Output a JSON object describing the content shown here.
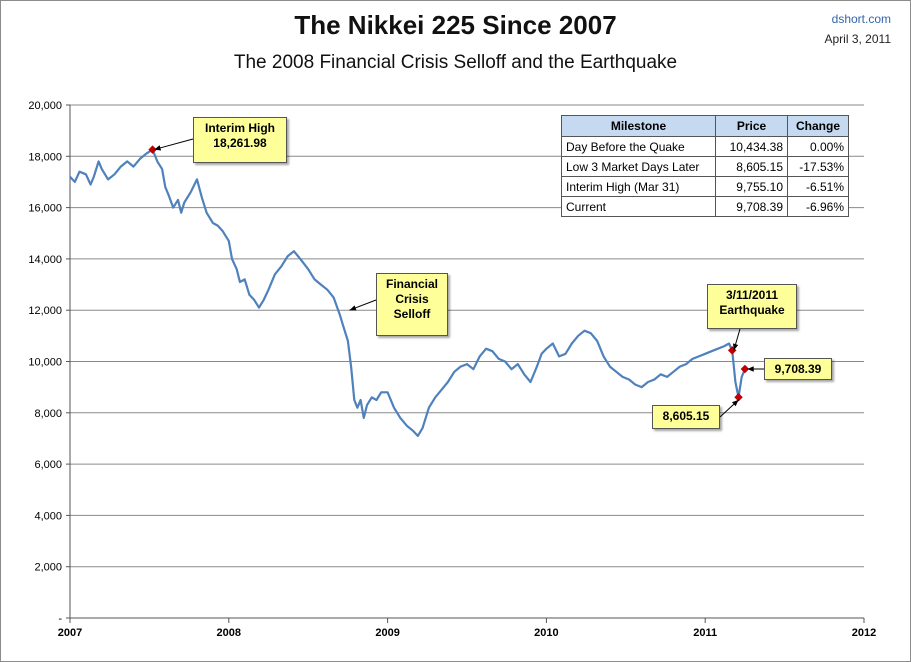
{
  "header": {
    "title": "The Nikkei 225 Since 2007",
    "subtitle": "The 2008 Financial Crisis Selloff and the Earthquake",
    "source": "dshort.com",
    "date": "April 3, 2011"
  },
  "colors": {
    "line": "#4f81bd",
    "marker": "#c00000",
    "annotation_fill": "#ffff99",
    "table_header": "#c5d9f1"
  },
  "annotations": {
    "interim_high": {
      "line1": "Interim High",
      "line2": "18,261.98"
    },
    "financial_crisis": {
      "line1": "Financial",
      "line2": "Crisis",
      "line3": "Selloff"
    },
    "earthquake": {
      "line1": "3/11/2011",
      "line2": "Earthquake"
    },
    "current": "9,708.39",
    "low": "8,605.15"
  },
  "table": {
    "headers": [
      "Milestone",
      "Price",
      "Change"
    ],
    "rows": [
      [
        "Day Before the Quake",
        "10,434.38",
        "0.00%"
      ],
      [
        "Low 3 Market Days Later",
        "8,605.15",
        "-17.53%"
      ],
      [
        "Interim High (Mar 31)",
        "9,755.10",
        "-6.51%"
      ],
      [
        "Current",
        "9,708.39",
        "-6.96%"
      ]
    ]
  },
  "chart_data": {
    "type": "line",
    "title": "The Nikkei 225 Since 2007",
    "subtitle": "The 2008 Financial Crisis Selloff and the Earthquake",
    "xlabel": "",
    "ylabel": "",
    "xlim": [
      2007,
      2012
    ],
    "ylim": [
      0,
      20000
    ],
    "grid": true,
    "y_ticks": [
      "-",
      "2,000",
      "4,000",
      "6,000",
      "8,000",
      "10,000",
      "12,000",
      "14,000",
      "16,000",
      "18,000",
      "20,000"
    ],
    "x_ticks": [
      "2007",
      "2008",
      "2009",
      "2010",
      "2011",
      "2012"
    ],
    "series": [
      {
        "x": [
          2007.0,
          2007.03,
          2007.06,
          2007.1,
          2007.13,
          2007.15,
          2007.18,
          2007.2,
          2007.24,
          2007.28,
          2007.32,
          2007.36,
          2007.4,
          2007.44,
          2007.48,
          2007.52,
          2007.55,
          2007.58,
          2007.6,
          2007.62,
          2007.65,
          2007.68,
          2007.7,
          2007.72,
          2007.76,
          2007.8,
          2007.83,
          2007.86,
          2007.9,
          2007.93,
          2007.96,
          2008.0,
          2008.02,
          2008.05,
          2008.07,
          2008.1,
          2008.13,
          2008.16,
          2008.19,
          2008.22,
          2008.25,
          2008.29,
          2008.33,
          2008.37,
          2008.41,
          2008.45,
          2008.5,
          2008.54,
          2008.58,
          2008.62,
          2008.66,
          2008.7,
          2008.72,
          2008.75,
          2008.77,
          2008.79,
          2008.81,
          2008.83,
          2008.85,
          2008.87,
          2008.9,
          2008.93,
          2008.96,
          2009.0,
          2009.04,
          2009.08,
          2009.12,
          2009.16,
          2009.19,
          2009.22,
          2009.26,
          2009.3,
          2009.34,
          2009.38,
          2009.42,
          2009.46,
          2009.5,
          2009.54,
          2009.58,
          2009.62,
          2009.66,
          2009.7,
          2009.74,
          2009.78,
          2009.82,
          2009.86,
          2009.9,
          2009.94,
          2009.97,
          2010.0,
          2010.04,
          2010.08,
          2010.12,
          2010.16,
          2010.2,
          2010.24,
          2010.28,
          2010.32,
          2010.36,
          2010.4,
          2010.44,
          2010.48,
          2010.52,
          2010.56,
          2010.6,
          2010.64,
          2010.68,
          2010.72,
          2010.76,
          2010.8,
          2010.84,
          2010.88,
          2010.92,
          2010.96,
          2011.0,
          2011.04,
          2011.08,
          2011.12,
          2011.15,
          2011.17,
          2011.19,
          2011.21,
          2011.23,
          2011.25
        ],
        "values": [
          17200,
          17000,
          17400,
          17300,
          16900,
          17200,
          17800,
          17500,
          17100,
          17300,
          17600,
          17800,
          17600,
          17900,
          18100,
          18262,
          17800,
          17500,
          16800,
          16500,
          16000,
          16300,
          15800,
          16200,
          16600,
          17100,
          16400,
          15800,
          15400,
          15300,
          15100,
          14700,
          14000,
          13600,
          13100,
          13200,
          12600,
          12400,
          12100,
          12400,
          12800,
          13400,
          13700,
          14100,
          14300,
          14000,
          13600,
          13200,
          13000,
          12800,
          12500,
          11800,
          11400,
          10800,
          9800,
          8500,
          8200,
          8500,
          7800,
          8300,
          8600,
          8500,
          8800,
          8800,
          8200,
          7800,
          7500,
          7300,
          7100,
          7400,
          8200,
          8600,
          8900,
          9200,
          9600,
          9800,
          9900,
          9700,
          10200,
          10500,
          10400,
          10100,
          10000,
          9700,
          9900,
          9500,
          9200,
          9800,
          10300,
          10500,
          10700,
          10200,
          10300,
          10700,
          11000,
          11200,
          11100,
          10800,
          10200,
          9800,
          9600,
          9400,
          9300,
          9100,
          9000,
          9200,
          9300,
          9500,
          9400,
          9600,
          9800,
          9900,
          10100,
          10200,
          10300,
          10400,
          10500,
          10600,
          10700,
          10434,
          9200,
          8605,
          9400,
          9708
        ]
      }
    ],
    "markers": [
      {
        "x": 2007.52,
        "y": 18262
      },
      {
        "x": 2011.17,
        "y": 10434
      },
      {
        "x": 2011.21,
        "y": 8605
      },
      {
        "x": 2011.25,
        "y": 9708
      }
    ]
  }
}
